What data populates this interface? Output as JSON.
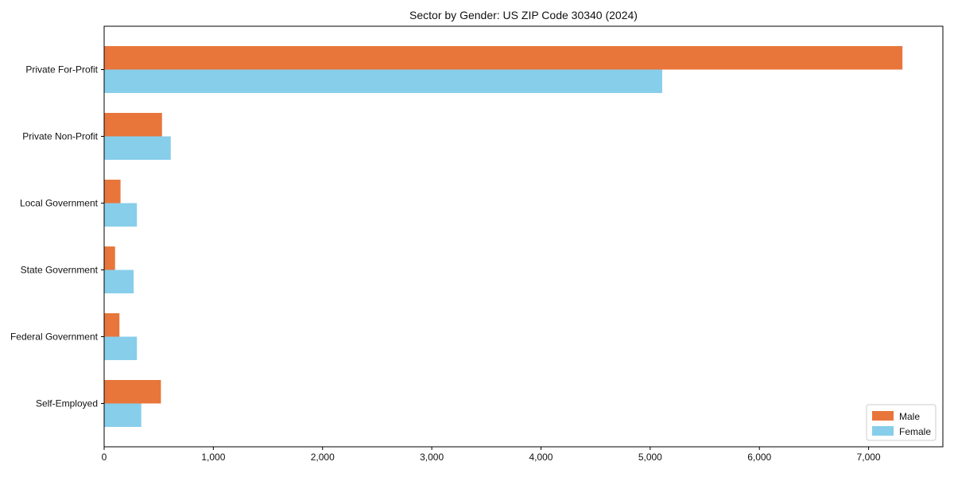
{
  "chart_data": {
    "type": "bar",
    "orientation": "horizontal",
    "title": "Sector by Gender: US ZIP Code 30340 (2024)",
    "categories": [
      "Private For-Profit",
      "Private Non-Profit",
      "Local Government",
      "State Government",
      "Federal Government",
      "Self-Employed"
    ],
    "series": [
      {
        "name": "Male",
        "color": "#E8763B",
        "values": [
          7310,
          530,
          150,
          100,
          140,
          520
        ]
      },
      {
        "name": "Female",
        "color": "#87CEEB",
        "values": [
          5110,
          610,
          300,
          270,
          300,
          340
        ]
      }
    ],
    "xlabel": "",
    "ylabel": "",
    "xlim": [
      0,
      7680
    ],
    "xticks": [
      0,
      1000,
      2000,
      3000,
      4000,
      5000,
      6000,
      7000
    ],
    "xtick_labels": [
      "0",
      "1,000",
      "2,000",
      "3,000",
      "4,000",
      "5,000",
      "6,000",
      "7,000"
    ],
    "grid": false,
    "background_color": "#ffffff",
    "axis_color": "#000000",
    "legend": {
      "position": "lower right",
      "entries": [
        "Male",
        "Female"
      ],
      "border_color": "#cccccc"
    }
  }
}
